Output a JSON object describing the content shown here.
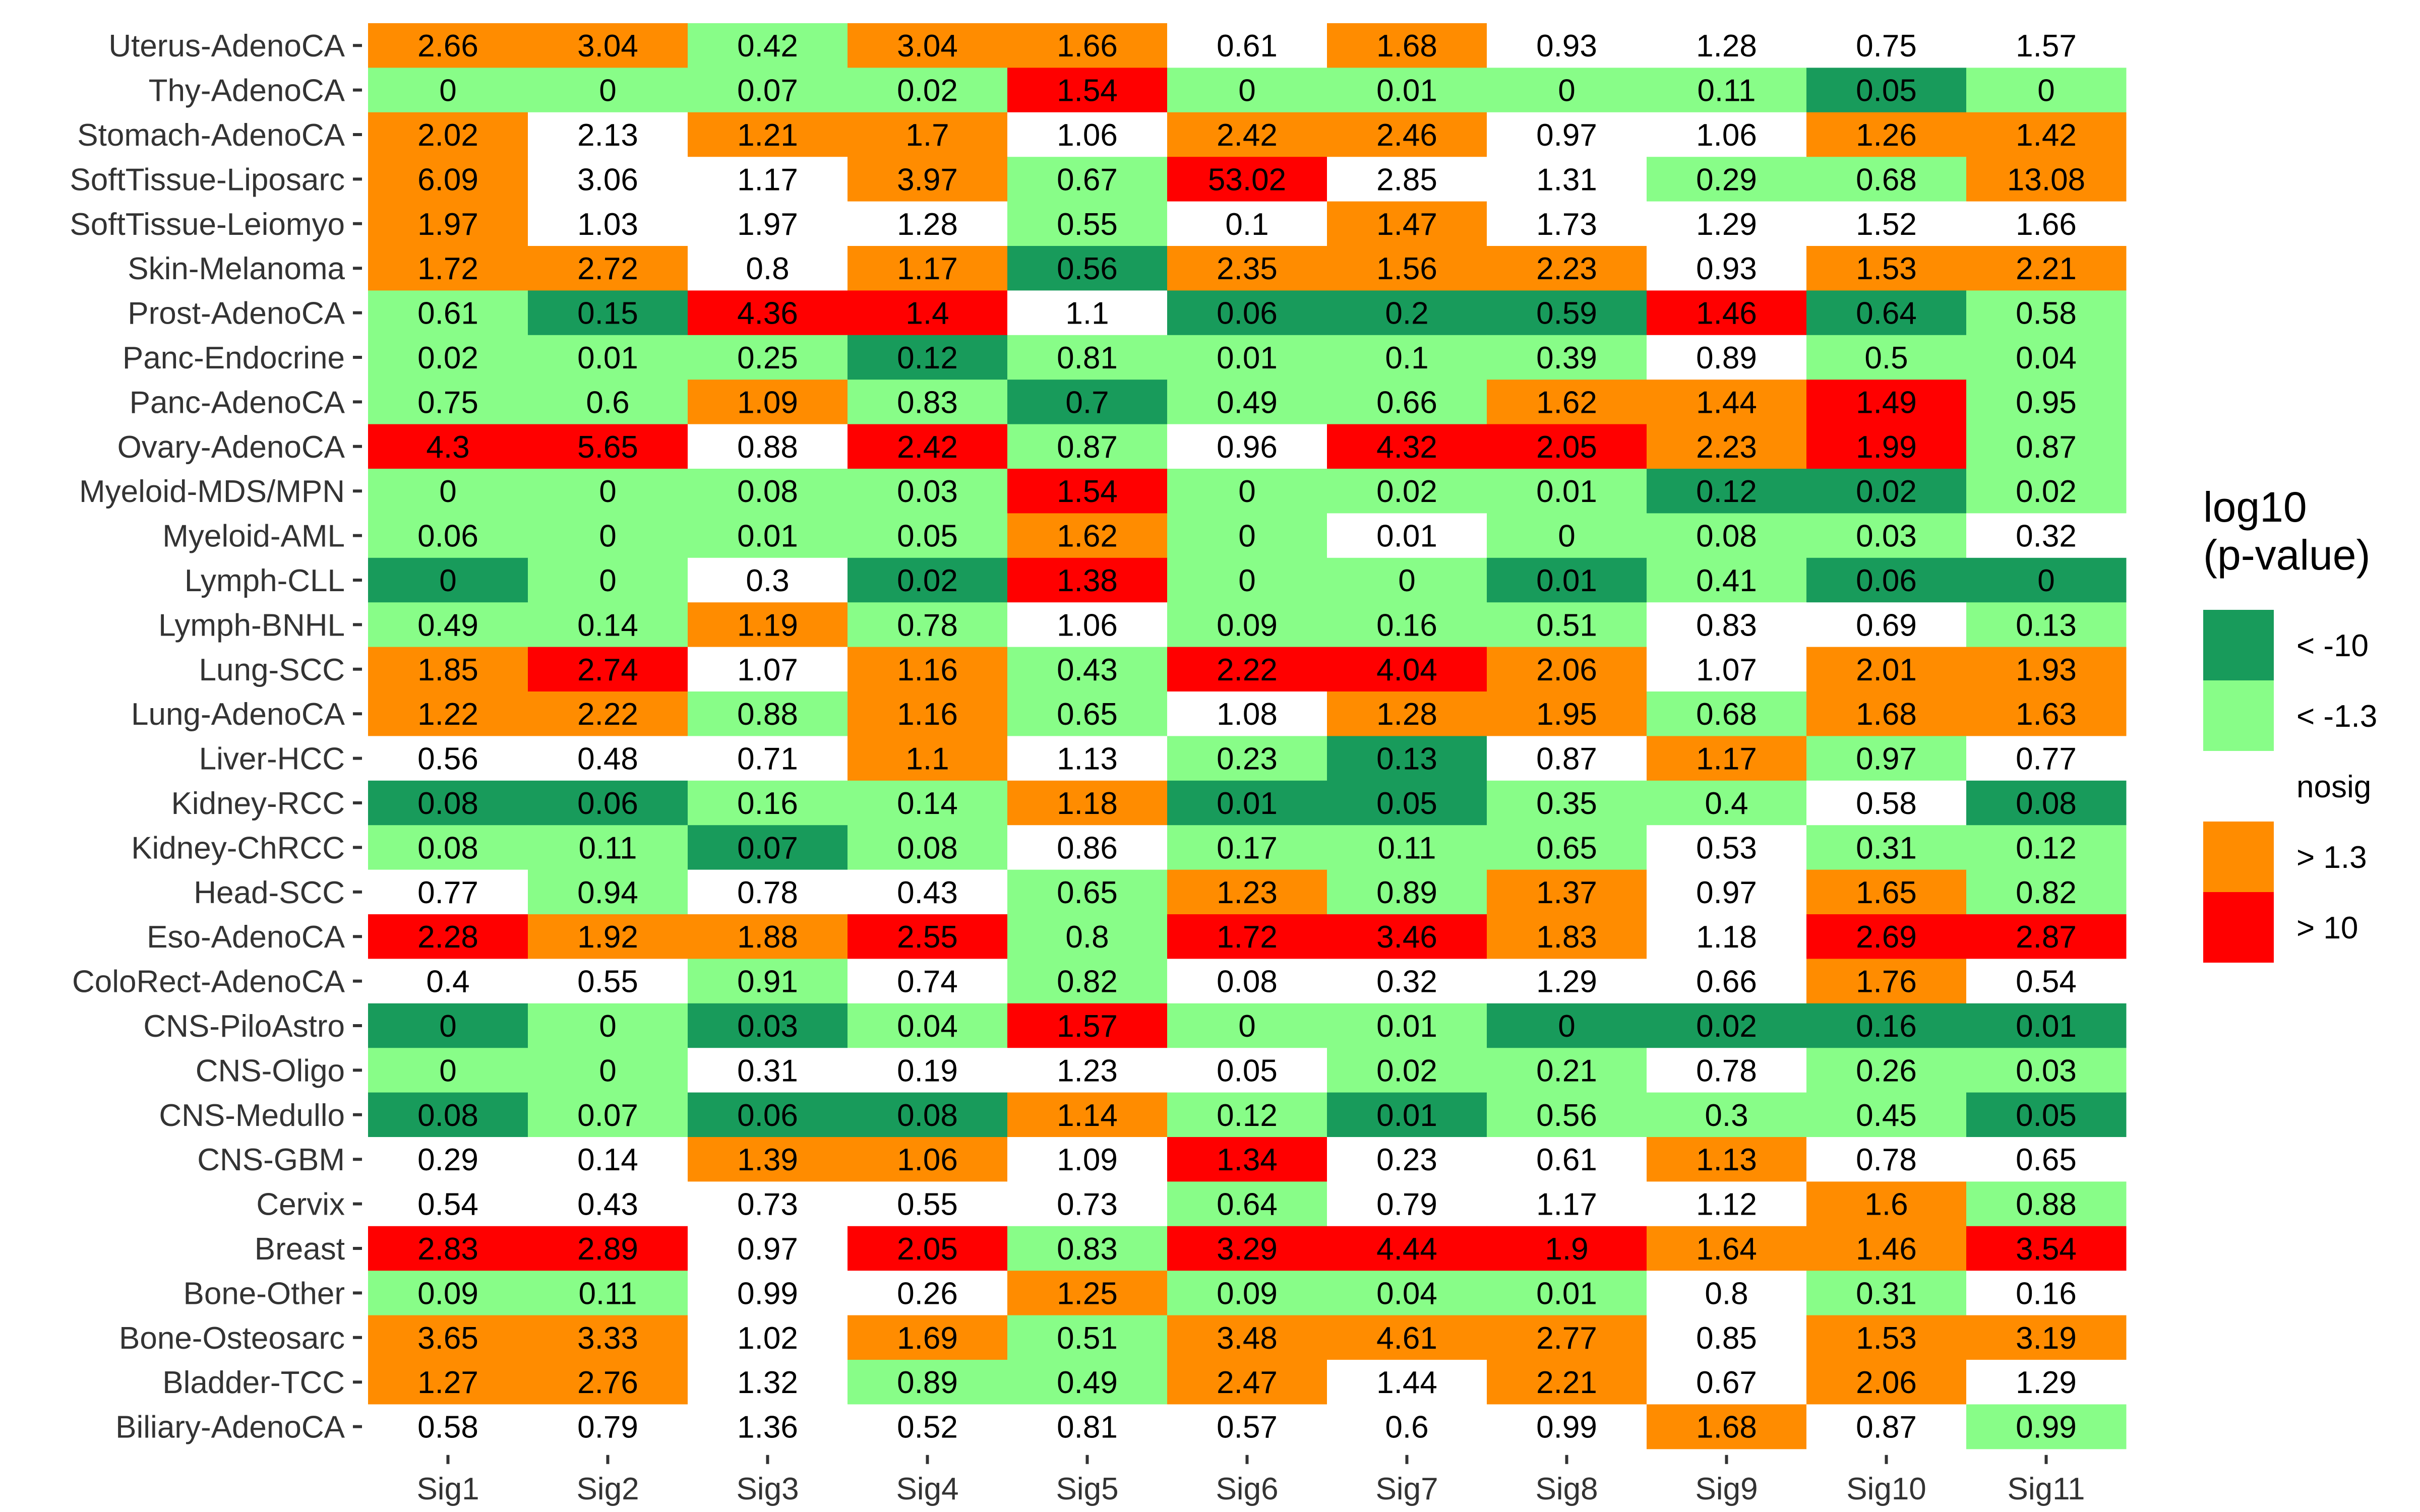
{
  "chart_data": {
    "type": "heatmap",
    "title": "",
    "xlabel": "",
    "ylabel": "",
    "columns": [
      "Sig1",
      "Sig2",
      "Sig3",
      "Sig4",
      "Sig5",
      "Sig6",
      "Sig7",
      "Sig8",
      "Sig9",
      "Sig10",
      "Sig11"
    ],
    "rows": [
      {
        "label": "Uterus-AdenoCA",
        "values": [
          "2.66",
          "3.04",
          "0.42",
          "3.04",
          "1.66",
          "0.61",
          "1.68",
          "0.93",
          "1.28",
          "0.75",
          "1.57"
        ],
        "categories": [
          3,
          3,
          1,
          3,
          3,
          2,
          3,
          2,
          2,
          2,
          2
        ]
      },
      {
        "label": "Thy-AdenoCA",
        "values": [
          "0",
          "0",
          "0.07",
          "0.02",
          "1.54",
          "0",
          "0.01",
          "0",
          "0.11",
          "0.05",
          "0"
        ],
        "categories": [
          1,
          1,
          1,
          1,
          4,
          1,
          1,
          1,
          1,
          0,
          1
        ]
      },
      {
        "label": "Stomach-AdenoCA",
        "values": [
          "2.02",
          "2.13",
          "1.21",
          "1.7",
          "1.06",
          "2.42",
          "2.46",
          "0.97",
          "1.06",
          "1.26",
          "1.42"
        ],
        "categories": [
          3,
          2,
          3,
          3,
          2,
          3,
          3,
          2,
          2,
          3,
          3
        ]
      },
      {
        "label": "SoftTissue-Liposarc",
        "values": [
          "6.09",
          "3.06",
          "1.17",
          "3.97",
          "0.67",
          "53.02",
          "2.85",
          "1.31",
          "0.29",
          "0.68",
          "13.08"
        ],
        "categories": [
          3,
          2,
          2,
          3,
          1,
          4,
          2,
          2,
          1,
          1,
          3
        ]
      },
      {
        "label": "SoftTissue-Leiomyo",
        "values": [
          "1.97",
          "1.03",
          "1.97",
          "1.28",
          "0.55",
          "0.1",
          "1.47",
          "1.73",
          "1.29",
          "1.52",
          "1.66"
        ],
        "categories": [
          3,
          2,
          2,
          2,
          1,
          2,
          3,
          2,
          2,
          2,
          2
        ]
      },
      {
        "label": "Skin-Melanoma",
        "values": [
          "1.72",
          "2.72",
          "0.8",
          "1.17",
          "0.56",
          "2.35",
          "1.56",
          "2.23",
          "0.93",
          "1.53",
          "2.21"
        ],
        "categories": [
          3,
          3,
          2,
          3,
          0,
          3,
          3,
          3,
          2,
          3,
          3
        ]
      },
      {
        "label": "Prost-AdenoCA",
        "values": [
          "0.61",
          "0.15",
          "4.36",
          "1.4",
          "1.1",
          "0.06",
          "0.2",
          "0.59",
          "1.46",
          "0.64",
          "0.58"
        ],
        "categories": [
          1,
          0,
          4,
          4,
          2,
          0,
          0,
          0,
          4,
          0,
          1
        ]
      },
      {
        "label": "Panc-Endocrine",
        "values": [
          "0.02",
          "0.01",
          "0.25",
          "0.12",
          "0.81",
          "0.01",
          "0.1",
          "0.39",
          "0.89",
          "0.5",
          "0.04"
        ],
        "categories": [
          1,
          1,
          1,
          0,
          1,
          1,
          1,
          1,
          2,
          1,
          1
        ]
      },
      {
        "label": "Panc-AdenoCA",
        "values": [
          "0.75",
          "0.6",
          "1.09",
          "0.83",
          "0.7",
          "0.49",
          "0.66",
          "1.62",
          "1.44",
          "1.49",
          "0.95"
        ],
        "categories": [
          1,
          1,
          3,
          1,
          0,
          1,
          1,
          3,
          3,
          4,
          1
        ]
      },
      {
        "label": "Ovary-AdenoCA",
        "values": [
          "4.3",
          "5.65",
          "0.88",
          "2.42",
          "0.87",
          "0.96",
          "4.32",
          "2.05",
          "2.23",
          "1.99",
          "0.87"
        ],
        "categories": [
          4,
          4,
          2,
          4,
          1,
          2,
          4,
          4,
          3,
          4,
          1
        ]
      },
      {
        "label": "Myeloid-MDS/MPN",
        "values": [
          "0",
          "0",
          "0.08",
          "0.03",
          "1.54",
          "0",
          "0.02",
          "0.01",
          "0.12",
          "0.02",
          "0.02"
        ],
        "categories": [
          1,
          1,
          1,
          1,
          4,
          1,
          1,
          1,
          0,
          0,
          1
        ]
      },
      {
        "label": "Myeloid-AML",
        "values": [
          "0.06",
          "0",
          "0.01",
          "0.05",
          "1.62",
          "0",
          "0.01",
          "0",
          "0.08",
          "0.03",
          "0.32"
        ],
        "categories": [
          1,
          1,
          1,
          1,
          3,
          1,
          2,
          1,
          1,
          1,
          2
        ]
      },
      {
        "label": "Lymph-CLL",
        "values": [
          "0",
          "0",
          "0.3",
          "0.02",
          "1.38",
          "0",
          "0",
          "0.01",
          "0.41",
          "0.06",
          "0"
        ],
        "categories": [
          0,
          1,
          2,
          0,
          4,
          1,
          1,
          0,
          1,
          0,
          0
        ]
      },
      {
        "label": "Lymph-BNHL",
        "values": [
          "0.49",
          "0.14",
          "1.19",
          "0.78",
          "1.06",
          "0.09",
          "0.16",
          "0.51",
          "0.83",
          "0.69",
          "0.13"
        ],
        "categories": [
          1,
          1,
          3,
          1,
          2,
          1,
          1,
          1,
          2,
          2,
          1
        ]
      },
      {
        "label": "Lung-SCC",
        "values": [
          "1.85",
          "2.74",
          "1.07",
          "1.16",
          "0.43",
          "2.22",
          "4.04",
          "2.06",
          "1.07",
          "2.01",
          "1.93"
        ],
        "categories": [
          3,
          4,
          2,
          3,
          1,
          4,
          4,
          3,
          2,
          3,
          3
        ]
      },
      {
        "label": "Lung-AdenoCA",
        "values": [
          "1.22",
          "2.22",
          "0.88",
          "1.16",
          "0.65",
          "1.08",
          "1.28",
          "1.95",
          "0.68",
          "1.68",
          "1.63"
        ],
        "categories": [
          3,
          3,
          1,
          3,
          1,
          2,
          3,
          3,
          1,
          3,
          3
        ]
      },
      {
        "label": "Liver-HCC",
        "values": [
          "0.56",
          "0.48",
          "0.71",
          "1.1",
          "1.13",
          "0.23",
          "0.13",
          "0.87",
          "1.17",
          "0.97",
          "0.77"
        ],
        "categories": [
          2,
          2,
          2,
          3,
          2,
          1,
          0,
          2,
          3,
          1,
          2
        ]
      },
      {
        "label": "Kidney-RCC",
        "values": [
          "0.08",
          "0.06",
          "0.16",
          "0.14",
          "1.18",
          "0.01",
          "0.05",
          "0.35",
          "0.4",
          "0.58",
          "0.08"
        ],
        "categories": [
          0,
          0,
          1,
          1,
          3,
          0,
          0,
          1,
          1,
          2,
          0
        ]
      },
      {
        "label": "Kidney-ChRCC",
        "values": [
          "0.08",
          "0.11",
          "0.07",
          "0.08",
          "0.86",
          "0.17",
          "0.11",
          "0.65",
          "0.53",
          "0.31",
          "0.12"
        ],
        "categories": [
          1,
          1,
          0,
          1,
          2,
          1,
          1,
          1,
          2,
          1,
          1
        ]
      },
      {
        "label": "Head-SCC",
        "values": [
          "0.77",
          "0.94",
          "0.78",
          "0.43",
          "0.65",
          "1.23",
          "0.89",
          "1.37",
          "0.97",
          "1.65",
          "0.82"
        ],
        "categories": [
          2,
          1,
          2,
          2,
          1,
          3,
          1,
          3,
          2,
          3,
          1
        ]
      },
      {
        "label": "Eso-AdenoCA",
        "values": [
          "2.28",
          "1.92",
          "1.88",
          "2.55",
          "0.8",
          "1.72",
          "3.46",
          "1.83",
          "1.18",
          "2.69",
          "2.87"
        ],
        "categories": [
          4,
          3,
          3,
          4,
          1,
          4,
          4,
          3,
          2,
          4,
          4
        ]
      },
      {
        "label": "ColoRect-AdenoCA",
        "values": [
          "0.4",
          "0.55",
          "0.91",
          "0.74",
          "0.82",
          "0.08",
          "0.32",
          "1.29",
          "0.66",
          "1.76",
          "0.54"
        ],
        "categories": [
          2,
          2,
          1,
          2,
          1,
          2,
          2,
          2,
          2,
          3,
          2
        ]
      },
      {
        "label": "CNS-PiloAstro",
        "values": [
          "0",
          "0",
          "0.03",
          "0.04",
          "1.57",
          "0",
          "0.01",
          "0",
          "0.02",
          "0.16",
          "0.01"
        ],
        "categories": [
          0,
          1,
          0,
          1,
          4,
          1,
          1,
          0,
          0,
          0,
          0
        ]
      },
      {
        "label": "CNS-Oligo",
        "values": [
          "0",
          "0",
          "0.31",
          "0.19",
          "1.23",
          "0.05",
          "0.02",
          "0.21",
          "0.78",
          "0.26",
          "0.03"
        ],
        "categories": [
          1,
          1,
          2,
          2,
          2,
          2,
          1,
          1,
          2,
          1,
          1
        ]
      },
      {
        "label": "CNS-Medullo",
        "values": [
          "0.08",
          "0.07",
          "0.06",
          "0.08",
          "1.14",
          "0.12",
          "0.01",
          "0.56",
          "0.3",
          "0.45",
          "0.05"
        ],
        "categories": [
          0,
          1,
          0,
          0,
          3,
          1,
          0,
          1,
          1,
          1,
          0
        ]
      },
      {
        "label": "CNS-GBM",
        "values": [
          "0.29",
          "0.14",
          "1.39",
          "1.06",
          "1.09",
          "1.34",
          "0.23",
          "0.61",
          "1.13",
          "0.78",
          "0.65"
        ],
        "categories": [
          2,
          2,
          3,
          3,
          2,
          4,
          2,
          2,
          3,
          2,
          2
        ]
      },
      {
        "label": "Cervix",
        "values": [
          "0.54",
          "0.43",
          "0.73",
          "0.55",
          "0.73",
          "0.64",
          "0.79",
          "1.17",
          "1.12",
          "1.6",
          "0.88"
        ],
        "categories": [
          2,
          2,
          2,
          2,
          2,
          1,
          2,
          2,
          2,
          3,
          1
        ]
      },
      {
        "label": "Breast",
        "values": [
          "2.83",
          "2.89",
          "0.97",
          "2.05",
          "0.83",
          "3.29",
          "4.44",
          "1.9",
          "1.64",
          "1.46",
          "3.54"
        ],
        "categories": [
          4,
          4,
          2,
          4,
          1,
          4,
          4,
          4,
          3,
          3,
          4
        ]
      },
      {
        "label": "Bone-Other",
        "values": [
          "0.09",
          "0.11",
          "0.99",
          "0.26",
          "1.25",
          "0.09",
          "0.04",
          "0.01",
          "0.8",
          "0.31",
          "0.16"
        ],
        "categories": [
          1,
          1,
          2,
          2,
          3,
          1,
          1,
          1,
          2,
          1,
          2
        ]
      },
      {
        "label": "Bone-Osteosarc",
        "values": [
          "3.65",
          "3.33",
          "1.02",
          "1.69",
          "0.51",
          "3.48",
          "4.61",
          "2.77",
          "0.85",
          "1.53",
          "3.19"
        ],
        "categories": [
          3,
          3,
          2,
          3,
          1,
          3,
          3,
          3,
          2,
          3,
          3
        ]
      },
      {
        "label": "Bladder-TCC",
        "values": [
          "1.27",
          "2.76",
          "1.32",
          "0.89",
          "0.49",
          "2.47",
          "1.44",
          "2.21",
          "0.67",
          "2.06",
          "1.29"
        ],
        "categories": [
          3,
          3,
          2,
          1,
          1,
          3,
          2,
          3,
          2,
          3,
          2
        ]
      },
      {
        "label": "Biliary-AdenoCA",
        "values": [
          "0.58",
          "0.79",
          "1.36",
          "0.52",
          "0.81",
          "0.57",
          "0.6",
          "0.99",
          "1.68",
          "0.87",
          "0.99"
        ],
        "categories": [
          2,
          2,
          2,
          2,
          2,
          2,
          2,
          2,
          3,
          2,
          1
        ]
      }
    ],
    "legend": {
      "title_lines": [
        "log10",
        "(p-value)"
      ],
      "placement": "right",
      "items": [
        {
          "label": "< -10",
          "color": "#189B5B"
        },
        {
          "label": "< -1.3",
          "color": "#88FD88"
        },
        {
          "label": "nosig",
          "color": "#FFFFFF"
        },
        {
          "label": "> 1.3",
          "color": "#FF8C00"
        },
        {
          "label": "> 10",
          "color": "#FF0000"
        }
      ]
    }
  }
}
